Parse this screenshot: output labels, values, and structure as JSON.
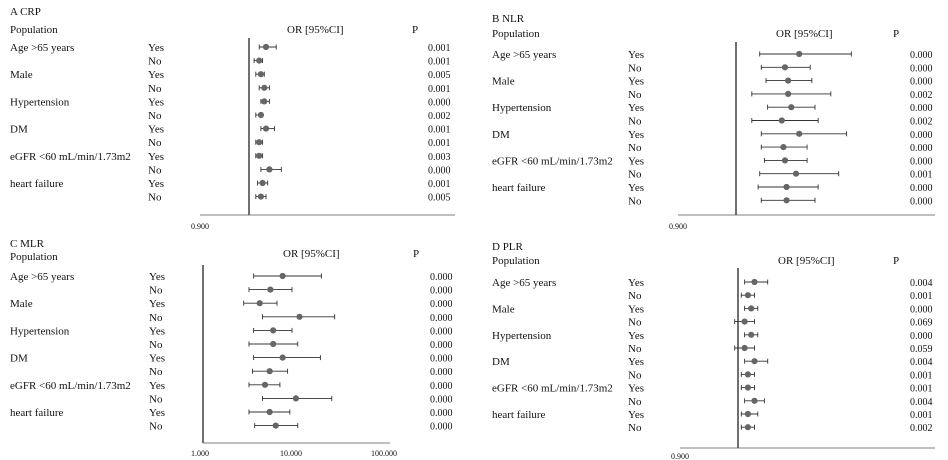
{
  "chart_data": [
    {
      "type": "forest",
      "panel_title": "A CRP",
      "population_label": "Population",
      "header": "OR [95%CI]",
      "p_header": "P",
      "axis_tick_labels": [
        "0.900"
      ],
      "x_ref": 1.0,
      "rows": [
        {
          "label": "Age >65 years",
          "group": "Yes",
          "or": 1.1,
          "lo": 1.06,
          "hi": 1.16,
          "p": "0.001"
        },
        {
          "label": "",
          "group": "No",
          "or": 1.06,
          "lo": 1.03,
          "hi": 1.08,
          "p": "0.001"
        },
        {
          "label": "Male",
          "group": "Yes",
          "or": 1.07,
          "lo": 1.04,
          "hi": 1.09,
          "p": "0.005"
        },
        {
          "label": "",
          "group": "No",
          "or": 1.09,
          "lo": 1.06,
          "hi": 1.12,
          "p": "0.001"
        },
        {
          "label": "Hypertension",
          "group": "Yes",
          "or": 1.09,
          "lo": 1.07,
          "hi": 1.12,
          "p": "0.000"
        },
        {
          "label": "",
          "group": "No",
          "or": 1.07,
          "lo": 1.04,
          "hi": 1.08,
          "p": "0.002"
        },
        {
          "label": "DM",
          "group": "Yes",
          "or": 1.1,
          "lo": 1.07,
          "hi": 1.15,
          "p": "0.001"
        },
        {
          "label": "",
          "group": "No",
          "or": 1.06,
          "lo": 1.04,
          "hi": 1.08,
          "p": "0.001"
        },
        {
          "label": "eGFR <60 mL/min/1.73m2",
          "group": "Yes",
          "or": 1.06,
          "lo": 1.04,
          "hi": 1.08,
          "p": "0.003"
        },
        {
          "label": "",
          "group": "No",
          "or": 1.12,
          "lo": 1.07,
          "hi": 1.19,
          "p": "0.000"
        },
        {
          "label": "heart failure",
          "group": "Yes",
          "or": 1.08,
          "lo": 1.05,
          "hi": 1.11,
          "p": "0.001"
        },
        {
          "label": "",
          "group": "No",
          "or": 1.07,
          "lo": 1.04,
          "hi": 1.1,
          "p": "0.005"
        }
      ]
    },
    {
      "type": "forest",
      "panel_title": "B NLR",
      "population_label": "Population",
      "header": "OR [95%CI]",
      "p_header": "P",
      "axis_tick_labels": [
        "0.900"
      ],
      "x_ref": 1.0,
      "rows": [
        {
          "label": "Age >65 years",
          "group": "Yes",
          "or": 1.4,
          "lo": 1.15,
          "hi": 1.73,
          "p": "0.000"
        },
        {
          "label": "",
          "group": "No",
          "or": 1.31,
          "lo": 1.16,
          "hi": 1.47,
          "p": "0.000"
        },
        {
          "label": "Male",
          "group": "Yes",
          "or": 1.33,
          "lo": 1.19,
          "hi": 1.48,
          "p": "0.000"
        },
        {
          "label": "",
          "group": "No",
          "or": 1.33,
          "lo": 1.1,
          "hi": 1.6,
          "p": "0.002"
        },
        {
          "label": "Hypertension",
          "group": "Yes",
          "or": 1.35,
          "lo": 1.2,
          "hi": 1.5,
          "p": "0.000"
        },
        {
          "label": "",
          "group": "No",
          "or": 1.29,
          "lo": 1.1,
          "hi": 1.52,
          "p": "0.002"
        },
        {
          "label": "DM",
          "group": "Yes",
          "or": 1.4,
          "lo": 1.16,
          "hi": 1.7,
          "p": "0.000"
        },
        {
          "label": "",
          "group": "No",
          "or": 1.3,
          "lo": 1.16,
          "hi": 1.45,
          "p": "0.000"
        },
        {
          "label": "eGFR <60 mL/min/1.73m2",
          "group": "Yes",
          "or": 1.31,
          "lo": 1.18,
          "hi": 1.45,
          "p": "0.000"
        },
        {
          "label": "",
          "group": "No",
          "or": 1.38,
          "lo": 1.15,
          "hi": 1.65,
          "p": "0.001"
        },
        {
          "label": "heart failure",
          "group": "Yes",
          "or": 1.32,
          "lo": 1.14,
          "hi": 1.52,
          "p": "0.000"
        },
        {
          "label": "",
          "group": "No",
          "or": 1.32,
          "lo": 1.16,
          "hi": 1.5,
          "p": "0.000"
        }
      ]
    },
    {
      "type": "forest",
      "panel_title": "C MLR",
      "population_label": "Population",
      "header": "OR [95%CI]",
      "p_header": "P",
      "axis_tick_labels": [
        "1.000",
        "10.000",
        "100.000"
      ],
      "x_scale": "log",
      "xlim": [
        1,
        100
      ],
      "x_ref": 1.0,
      "rows": [
        {
          "label": "Age >65 years",
          "group": "Yes",
          "or": 7.5,
          "lo": 3.6,
          "hi": 20.0,
          "p": "0.000"
        },
        {
          "label": "",
          "group": "No",
          "or": 5.5,
          "lo": 3.2,
          "hi": 9.5,
          "p": "0.000"
        },
        {
          "label": "Male",
          "group": "Yes",
          "or": 4.2,
          "lo": 2.8,
          "hi": 6.5,
          "p": "0.000"
        },
        {
          "label": "",
          "group": "No",
          "or": 11.5,
          "lo": 4.5,
          "hi": 28.0,
          "p": "0.000"
        },
        {
          "label": "Hypertension",
          "group": "Yes",
          "or": 5.9,
          "lo": 3.6,
          "hi": 9.5,
          "p": "0.000"
        },
        {
          "label": "",
          "group": "No",
          "or": 5.9,
          "lo": 3.2,
          "hi": 11.0,
          "p": "0.000"
        },
        {
          "label": "DM",
          "group": "Yes",
          "or": 7.5,
          "lo": 3.6,
          "hi": 19.5,
          "p": "0.000"
        },
        {
          "label": "",
          "group": "No",
          "or": 5.4,
          "lo": 3.5,
          "hi": 8.5,
          "p": "0.000"
        },
        {
          "label": "eGFR <60 mL/min/1.73m2",
          "group": "Yes",
          "or": 4.8,
          "lo": 3.2,
          "hi": 7.0,
          "p": "0.000"
        },
        {
          "label": "",
          "group": "No",
          "or": 10.5,
          "lo": 4.5,
          "hi": 26.0,
          "p": "0.000"
        },
        {
          "label": "heart failure",
          "group": "Yes",
          "or": 5.4,
          "lo": 3.2,
          "hi": 9.0,
          "p": "0.000"
        },
        {
          "label": "",
          "group": "No",
          "or": 6.3,
          "lo": 3.7,
          "hi": 11.0,
          "p": "0.000"
        }
      ]
    },
    {
      "type": "forest",
      "panel_title": "D PLR",
      "population_label": "Population",
      "header": "OR [95%CI]",
      "p_header": "P",
      "axis_tick_labels": [
        "0.900"
      ],
      "x_ref": 1.0,
      "rows": [
        {
          "label": "Age >65 years",
          "group": "Yes",
          "or": 1.05,
          "lo": 1.02,
          "hi": 1.09,
          "p": "0.004"
        },
        {
          "label": "",
          "group": "No",
          "or": 1.03,
          "lo": 1.01,
          "hi": 1.05,
          "p": "0.001"
        },
        {
          "label": "Male",
          "group": "Yes",
          "or": 1.04,
          "lo": 1.02,
          "hi": 1.06,
          "p": "0.000"
        },
        {
          "label": "",
          "group": "No",
          "or": 1.02,
          "lo": 0.99,
          "hi": 1.05,
          "p": "0.069"
        },
        {
          "label": "Hypertension",
          "group": "Yes",
          "or": 1.04,
          "lo": 1.02,
          "hi": 1.06,
          "p": "0.000"
        },
        {
          "label": "",
          "group": "No",
          "or": 1.02,
          "lo": 0.99,
          "hi": 1.05,
          "p": "0.059"
        },
        {
          "label": "DM",
          "group": "Yes",
          "or": 1.05,
          "lo": 1.02,
          "hi": 1.09,
          "p": "0.004"
        },
        {
          "label": "",
          "group": "No",
          "or": 1.03,
          "lo": 1.01,
          "hi": 1.05,
          "p": "0.001"
        },
        {
          "label": "eGFR <60 mL/min/1.73m2",
          "group": "Yes",
          "or": 1.03,
          "lo": 1.01,
          "hi": 1.05,
          "p": "0.001"
        },
        {
          "label": "",
          "group": "No",
          "or": 1.05,
          "lo": 1.02,
          "hi": 1.08,
          "p": "0.004"
        },
        {
          "label": "heart failure",
          "group": "Yes",
          "or": 1.03,
          "lo": 1.01,
          "hi": 1.06,
          "p": "0.001"
        },
        {
          "label": "",
          "group": "No",
          "or": 1.03,
          "lo": 1.01,
          "hi": 1.05,
          "p": "0.002"
        }
      ]
    }
  ]
}
